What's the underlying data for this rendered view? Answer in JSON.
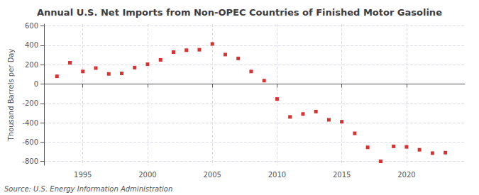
{
  "chart_data": {
    "type": "scatter",
    "title": "Annual U.S. Net Imports from Non-OPEC Countries of Finished Motor Gasoline",
    "ylabel": "Thousand Barrels per Day",
    "source": "Source: U.S. Energy Information Administration",
    "x": [
      1993,
      1994,
      1995,
      1996,
      1997,
      1998,
      1999,
      2000,
      2001,
      2002,
      2003,
      2004,
      2005,
      2006,
      2007,
      2008,
      2009,
      2010,
      2011,
      2012,
      2013,
      2014,
      2015,
      2016,
      2017,
      2018,
      2019,
      2020,
      2021,
      2022,
      2023
    ],
    "values": [
      80,
      220,
      130,
      165,
      105,
      110,
      170,
      205,
      250,
      330,
      350,
      355,
      415,
      305,
      265,
      130,
      35,
      -155,
      -340,
      -310,
      -285,
      -370,
      -390,
      -510,
      -655,
      -800,
      -645,
      -650,
      -680,
      -715,
      -710
    ],
    "color": "#cc0000",
    "marker": "square",
    "xlim": [
      1992,
      2024.5
    ],
    "xticks": [
      1995,
      2000,
      2005,
      2010,
      2015,
      2020
    ],
    "ylim": [
      -840,
      620
    ],
    "yticks": [
      -800,
      -600,
      -400,
      -200,
      0,
      200,
      400,
      600
    ],
    "grid": true
  }
}
